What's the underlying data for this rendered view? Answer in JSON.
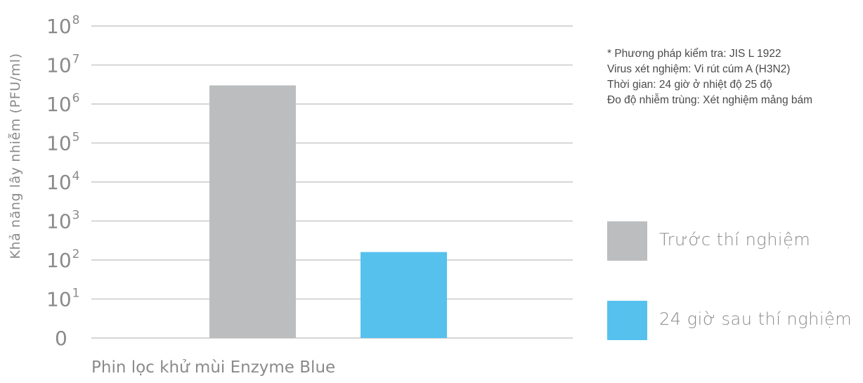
{
  "chart_data": {
    "type": "bar",
    "title": "",
    "ylabel": "Khả năng lây nhiễm (PFU/ml)",
    "yscale": "log",
    "yticks": [
      {
        "label": "0"
      },
      {
        "label": "10",
        "exp": "1"
      },
      {
        "label": "10",
        "exp": "2"
      },
      {
        "label": "10",
        "exp": "3"
      },
      {
        "label": "10",
        "exp": "4"
      },
      {
        "label": "10",
        "exp": "5"
      },
      {
        "label": "10",
        "exp": "6"
      },
      {
        "label": "10",
        "exp": "7"
      },
      {
        "label": "10",
        "exp": "8"
      }
    ],
    "categories": [
      "Phin lọc khử mùi Enzyme Blue"
    ],
    "series": [
      {
        "name": "Trước thí nghiệm",
        "color": "#bcbdbf",
        "values": [
          3000000
        ]
      },
      {
        "name": "24 giờ sau thí nghiệm",
        "color": "#57c1ee",
        "values": [
          160
        ]
      }
    ],
    "grid": true,
    "legend_position": "right"
  },
  "notes": [
    "* Phương pháp kiểm tra: JIS L 1922",
    "Virus xét nghiệm: Vi rút cúm A (H3N2)",
    "Thời gian: 24 giờ ở nhiệt độ 25 độ",
    "Đo độ nhiễm trùng: Xét nghiệm mảng bám"
  ]
}
